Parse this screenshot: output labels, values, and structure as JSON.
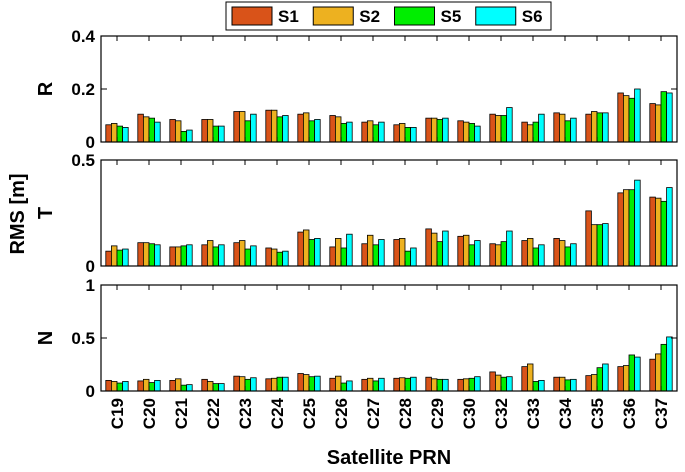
{
  "chart_data": {
    "type": "bar",
    "xlabel": "Satellite PRN",
    "ylabel": "RMS [m]",
    "legend_placement": "top-center",
    "grid": false,
    "categories": [
      "C19",
      "C20",
      "C21",
      "C22",
      "C23",
      "C24",
      "C25",
      "C26",
      "C27",
      "C28",
      "C29",
      "C30",
      "C32",
      "C33",
      "C34",
      "C35",
      "C36",
      "C37"
    ],
    "series_meta": [
      {
        "name": "S1",
        "color": "#d95319"
      },
      {
        "name": "S2",
        "color": "#edb120"
      },
      {
        "name": "S5",
        "color": "#00ee00"
      },
      {
        "name": "S6",
        "color": "#00ffff"
      }
    ],
    "panels": [
      {
        "label": "R",
        "ylim": [
          0,
          0.4
        ],
        "yticks": [
          {
            "v": 0,
            "t": "0"
          },
          {
            "v": 0.2,
            "t": "0.2"
          },
          {
            "v": 0.4,
            "t": "0.4"
          }
        ],
        "series": [
          {
            "name": "S1",
            "values": [
              0.065,
              0.105,
              0.085,
              0.085,
              0.115,
              0.12,
              0.105,
              0.1,
              0.075,
              0.065,
              0.09,
              0.08,
              0.105,
              0.075,
              0.11,
              0.105,
              0.185,
              0.145
            ]
          },
          {
            "name": "S2",
            "values": [
              0.07,
              0.095,
              0.08,
              0.085,
              0.115,
              0.12,
              0.11,
              0.095,
              0.08,
              0.07,
              0.09,
              0.075,
              0.1,
              0.065,
              0.105,
              0.115,
              0.175,
              0.14
            ]
          },
          {
            "name": "S5",
            "values": [
              0.06,
              0.09,
              0.04,
              0.06,
              0.08,
              0.095,
              0.08,
              0.07,
              0.065,
              0.055,
              0.085,
              0.07,
              0.1,
              0.075,
              0.08,
              0.11,
              0.165,
              0.19
            ]
          },
          {
            "name": "S6",
            "values": [
              0.055,
              0.075,
              0.045,
              0.06,
              0.105,
              0.1,
              0.085,
              0.075,
              0.075,
              0.055,
              0.09,
              0.06,
              0.13,
              0.105,
              0.09,
              0.11,
              0.2,
              0.185
            ]
          }
        ]
      },
      {
        "label": "T",
        "ylim": [
          0,
          0.5
        ],
        "yticks": [
          {
            "v": 0,
            "t": "0"
          },
          {
            "v": 0.5,
            "t": "0.5"
          }
        ],
        "series": [
          {
            "name": "S1",
            "values": [
              0.07,
              0.11,
              0.09,
              0.1,
              0.11,
              0.085,
              0.16,
              0.09,
              0.105,
              0.125,
              0.175,
              0.14,
              0.105,
              0.12,
              0.13,
              0.26,
              0.345,
              0.325
            ]
          },
          {
            "name": "S2",
            "values": [
              0.095,
              0.11,
              0.09,
              0.12,
              0.12,
              0.08,
              0.17,
              0.13,
              0.145,
              0.13,
              0.155,
              0.145,
              0.1,
              0.13,
              0.12,
              0.195,
              0.36,
              0.32
            ]
          },
          {
            "name": "S5",
            "values": [
              0.075,
              0.105,
              0.095,
              0.09,
              0.08,
              0.065,
              0.125,
              0.085,
              0.1,
              0.07,
              0.115,
              0.1,
              0.115,
              0.085,
              0.09,
              0.195,
              0.36,
              0.305
            ]
          },
          {
            "name": "S6",
            "values": [
              0.08,
              0.1,
              0.1,
              0.1,
              0.095,
              0.07,
              0.13,
              0.15,
              0.125,
              0.085,
              0.165,
              0.12,
              0.165,
              0.1,
              0.105,
              0.2,
              0.405,
              0.37
            ]
          }
        ]
      },
      {
        "label": "N",
        "ylim": [
          0,
          1
        ],
        "yticks": [
          {
            "v": 0,
            "t": "0"
          },
          {
            "v": 0.5,
            "t": "0.5"
          },
          {
            "v": 1,
            "t": "1"
          }
        ],
        "series": [
          {
            "name": "S1",
            "values": [
              0.1,
              0.095,
              0.1,
              0.11,
              0.14,
              0.115,
              0.165,
              0.12,
              0.11,
              0.12,
              0.13,
              0.11,
              0.18,
              0.23,
              0.13,
              0.145,
              0.23,
              0.3
            ]
          },
          {
            "name": "S2",
            "values": [
              0.09,
              0.11,
              0.115,
              0.09,
              0.135,
              0.12,
              0.155,
              0.14,
              0.12,
              0.125,
              0.115,
              0.115,
              0.15,
              0.255,
              0.13,
              0.155,
              0.24,
              0.35
            ]
          },
          {
            "name": "S5",
            "values": [
              0.075,
              0.08,
              0.055,
              0.07,
              0.11,
              0.13,
              0.135,
              0.075,
              0.095,
              0.12,
              0.11,
              0.12,
              0.13,
              0.09,
              0.105,
              0.22,
              0.34,
              0.44
            ]
          },
          {
            "name": "S6",
            "values": [
              0.09,
              0.1,
              0.06,
              0.07,
              0.125,
              0.13,
              0.14,
              0.095,
              0.12,
              0.13,
              0.11,
              0.135,
              0.135,
              0.1,
              0.11,
              0.255,
              0.32,
              0.51
            ]
          }
        ]
      }
    ]
  }
}
